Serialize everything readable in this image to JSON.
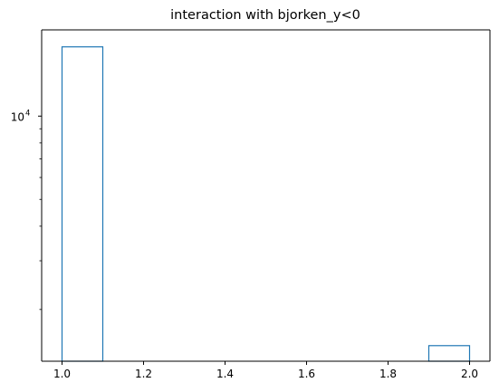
{
  "chart_data": {
    "type": "histogram",
    "title": "interaction with bjorken_y<0",
    "xlabel": "",
    "ylabel": "",
    "y_scale": "log",
    "histtype": "step",
    "bins": [
      {
        "x0": 1.0,
        "x1": 1.1,
        "count": 17800
      },
      {
        "x0": 1.9,
        "x1": 2.0,
        "count": 1480
      }
    ],
    "xlim": [
      0.95,
      2.05
    ],
    "ylim": [
      1300,
      20500
    ],
    "x_ticks": [
      {
        "value": 1.0,
        "label": "1.0"
      },
      {
        "value": 1.2,
        "label": "1.2"
      },
      {
        "value": 1.4,
        "label": "1.4"
      },
      {
        "value": 1.6,
        "label": "1.6"
      },
      {
        "value": 1.8,
        "label": "1.8"
      },
      {
        "value": 2.0,
        "label": "2.0"
      }
    ],
    "y_major_ticks": [
      {
        "value": 10000,
        "base": "10",
        "exponent": "4"
      }
    ],
    "y_minor_ticks": [
      2000,
      3000,
      4000,
      5000,
      6000,
      7000,
      8000,
      9000
    ],
    "grid": false,
    "legend": false,
    "colors": {
      "series": "#1f77b4",
      "axes": "#000000",
      "background": "#ffffff"
    }
  }
}
